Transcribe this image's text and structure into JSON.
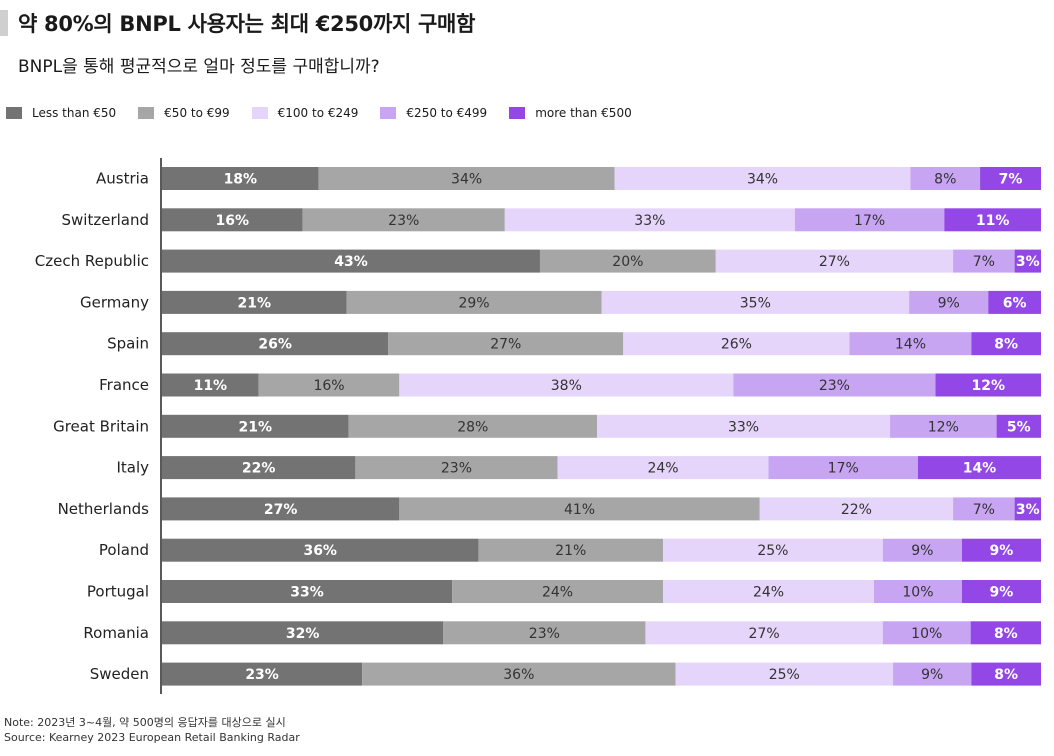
{
  "header": {
    "title": "약 80%의 BNPL 사용자는 최대 €250까지 구매함",
    "subtitle": "BNPL을 통해 평균적으로 얼마 정도를 구매합니까?"
  },
  "colors": {
    "series": [
      "#737373",
      "#a6a6a6",
      "#e6d5fb",
      "#c7a5f2",
      "#9347e6"
    ],
    "label_dark": "#ffffff",
    "label_light": "#333333"
  },
  "chart_data": {
    "type": "bar",
    "orientation": "horizontal",
    "stacked": true,
    "legend": "top-left",
    "categories": [
      "Austria",
      "Switzerland",
      "Czech Republic",
      "Germany",
      "Spain",
      "France",
      "Great Britain",
      "Italy",
      "Netherlands",
      "Poland",
      "Portugal",
      "Romania",
      "Sweden"
    ],
    "series": [
      {
        "name": "Less than €50",
        "values": [
          18,
          16,
          43,
          21,
          26,
          11,
          21,
          22,
          27,
          36,
          33,
          32,
          23
        ]
      },
      {
        "name": "€50 to €99",
        "values": [
          34,
          23,
          20,
          29,
          27,
          16,
          28,
          23,
          41,
          21,
          24,
          23,
          36
        ]
      },
      {
        "name": "€100 to €249",
        "values": [
          34,
          33,
          27,
          35,
          26,
          38,
          33,
          24,
          22,
          25,
          24,
          27,
          25
        ]
      },
      {
        "name": "€250 to €499",
        "values": [
          8,
          17,
          7,
          9,
          14,
          23,
          12,
          17,
          7,
          9,
          10,
          10,
          9
        ]
      },
      {
        "name": "more than €500",
        "values": [
          7,
          11,
          3,
          6,
          8,
          12,
          5,
          14,
          3,
          9,
          9,
          8,
          8
        ]
      }
    ],
    "value_suffix": "%"
  },
  "footer": {
    "note": "Note: 2023년 3~4월, 약 500명의 응답자를 대상으로 실시",
    "source": "Source: Kearney 2023 European Retail Banking Radar"
  }
}
